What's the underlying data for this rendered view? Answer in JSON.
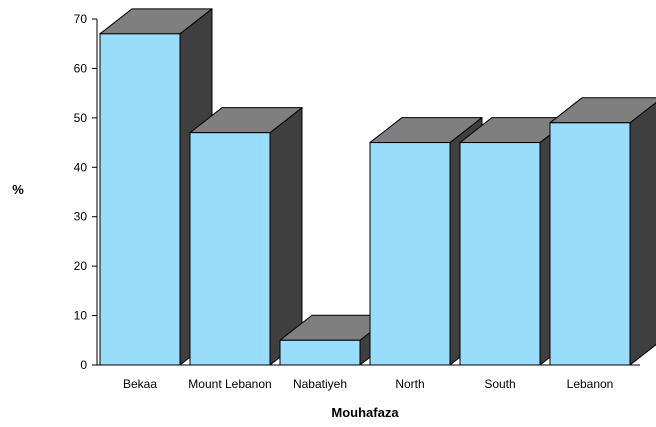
{
  "chart_data": {
    "type": "bar",
    "title": "",
    "xlabel": "Mouhafaza",
    "ylabel": "%",
    "categories": [
      "Bekaa",
      "Mount Lebanon",
      "Nabatiyeh",
      "North",
      "South",
      "Lebanon"
    ],
    "values": [
      67,
      47,
      5,
      45,
      45,
      49
    ],
    "ylim": [
      0,
      70
    ],
    "yticks": [
      0,
      10,
      20,
      30,
      40,
      50,
      60,
      70
    ],
    "grid": false,
    "legend": "none",
    "style": "3d",
    "colors": {
      "front": "#99ddfb",
      "top": "#7f7f7f",
      "side": "#3f3f3f",
      "edge": "#000000"
    }
  }
}
